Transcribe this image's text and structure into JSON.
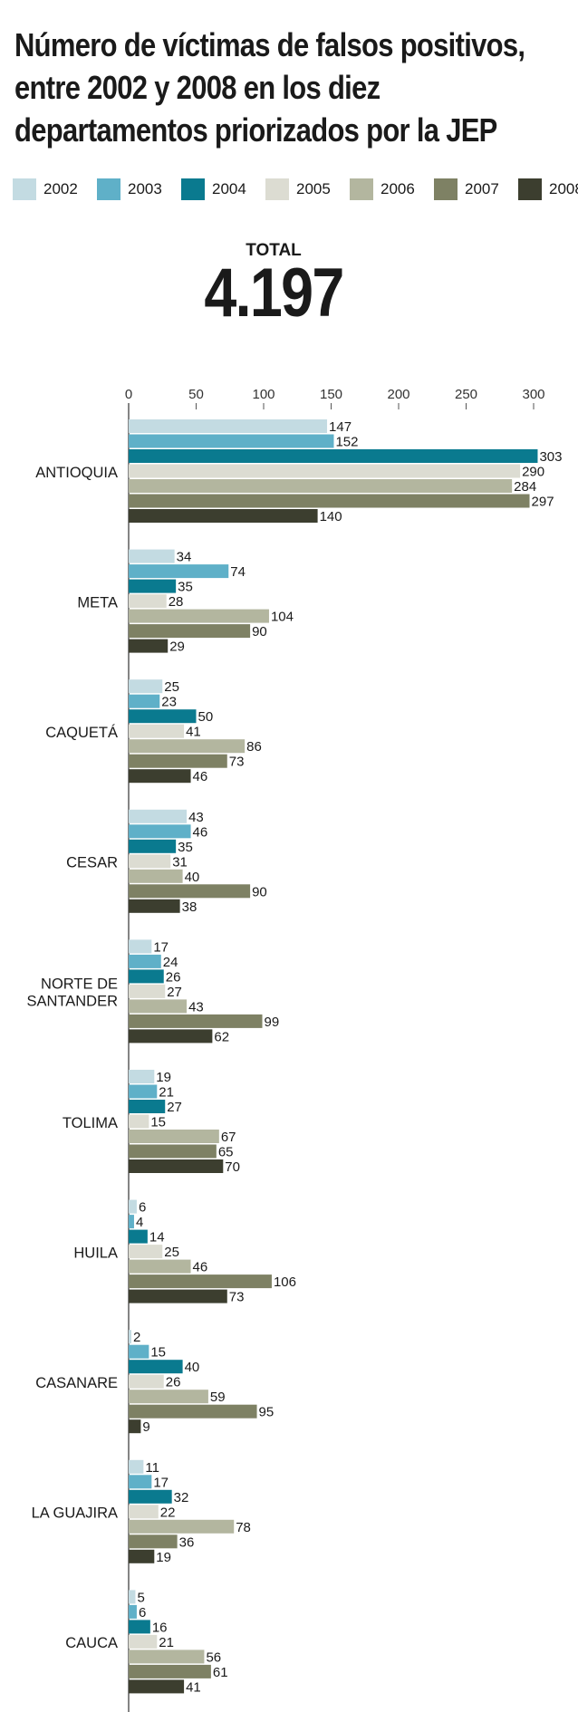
{
  "title_lines": [
    "Número de víctimas de falsos positivos,",
    "entre 2002 y 2008 en los diez",
    "departamentos priorizados por la JEP"
  ],
  "total": {
    "label": "TOTAL",
    "value": "4.197"
  },
  "colors": {
    "2002": "#c3dbe2",
    "2003": "#5fb0c8",
    "2004": "#0a7a8f",
    "2005": "#dcdcd2",
    "2006": "#b3b69f",
    "2007": "#7e8164",
    "2008": "#3c3e2f"
  },
  "chart_data": {
    "type": "bar",
    "orientation": "horizontal",
    "grouped": true,
    "title": "Número de víctimas de falsos positivos, entre 2002 y 2008 en los diez departamentos priorizados por la JEP",
    "xlabel": "",
    "ylabel": "",
    "xlim": [
      0,
      300
    ],
    "x_ticks": [
      0,
      50,
      100,
      150,
      200,
      250,
      300
    ],
    "grid": false,
    "legend_position": "top",
    "categories": [
      "ANTIOQUIA",
      "META",
      "CAQUETÁ",
      "CESAR",
      "NORTE DE SANTANDER",
      "TOLIMA",
      "HUILA",
      "CASANARE",
      "LA GUAJIRA",
      "CAUCA"
    ],
    "series": [
      {
        "name": "2002",
        "values": [
          147,
          34,
          25,
          43,
          17,
          19,
          6,
          2,
          11,
          5
        ]
      },
      {
        "name": "2003",
        "values": [
          152,
          74,
          23,
          46,
          24,
          21,
          4,
          15,
          17,
          6
        ]
      },
      {
        "name": "2004",
        "values": [
          303,
          35,
          50,
          35,
          26,
          27,
          14,
          40,
          32,
          16
        ]
      },
      {
        "name": "2005",
        "values": [
          290,
          28,
          41,
          31,
          27,
          15,
          25,
          26,
          22,
          21
        ]
      },
      {
        "name": "2006",
        "values": [
          284,
          104,
          86,
          40,
          43,
          67,
          46,
          59,
          78,
          56
        ]
      },
      {
        "name": "2007",
        "values": [
          297,
          90,
          73,
          90,
          99,
          65,
          106,
          95,
          36,
          61
        ]
      },
      {
        "name": "2008",
        "values": [
          140,
          29,
          46,
          38,
          62,
          70,
          73,
          9,
          19,
          41
        ]
      }
    ]
  }
}
